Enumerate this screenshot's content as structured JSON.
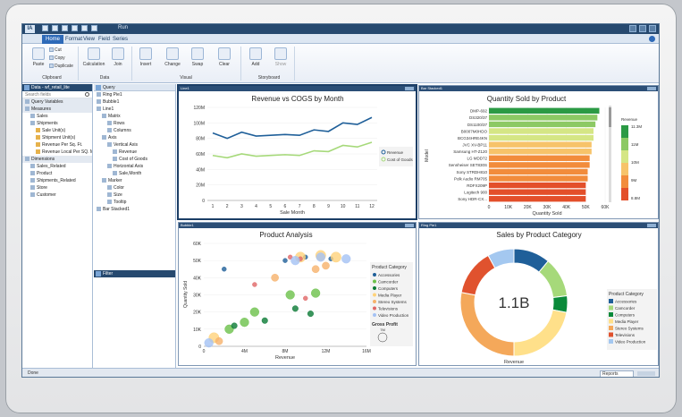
{
  "window": {
    "app_icon": "IA",
    "quick_access_label": "Run",
    "tabs": [
      "Home",
      "Format",
      "View",
      "Field",
      "Series"
    ],
    "active_tab": "Home"
  },
  "ribbon": {
    "paste": "Paste",
    "cut": "Cut",
    "copy": "Copy",
    "duplicate": "Duplicate",
    "calculation": "Calculation",
    "join": "Join",
    "insert": "Insert",
    "change": "Change",
    "swap": "Swap",
    "clear": "Clear",
    "add": "Add",
    "show": "Show",
    "groups": {
      "clipboard": "Clipboard",
      "data": "Data",
      "visual": "Visual",
      "storyboard": "Storyboard"
    }
  },
  "data_panel": {
    "title": "Data - wf_retail_lite",
    "search_placeholder": "Search fields",
    "items": [
      {
        "label": "Query Variables",
        "level": 0,
        "kind": "hdr"
      },
      {
        "label": "Measures",
        "level": 0,
        "kind": "hdr"
      },
      {
        "label": "Sales",
        "level": 1,
        "kind": "folder"
      },
      {
        "label": "Shipments",
        "level": 1,
        "kind": "folder"
      },
      {
        "label": "Sale Unit(s)",
        "level": 2,
        "kind": "m"
      },
      {
        "label": "Shipment Unit(s)",
        "level": 2,
        "kind": "m"
      },
      {
        "label": "Revenue Per Sq. Ft.",
        "level": 2,
        "kind": "m"
      },
      {
        "label": "Revenue Local Per SQ. M.",
        "level": 2,
        "kind": "m"
      },
      {
        "label": "Dimensions",
        "level": 0,
        "kind": "hdr"
      },
      {
        "label": "Sales_Related",
        "level": 1,
        "kind": "folder"
      },
      {
        "label": "Product",
        "level": 1,
        "kind": "folder"
      },
      {
        "label": "Shipments_Related",
        "level": 1,
        "kind": "folder"
      },
      {
        "label": "Store",
        "level": 1,
        "kind": "folder"
      },
      {
        "label": "Customer",
        "level": 1,
        "kind": "folder"
      }
    ]
  },
  "query_panel": {
    "title": "Query",
    "items": [
      {
        "label": "Ring Pie1",
        "level": 0
      },
      {
        "label": "Bubble1",
        "level": 0
      },
      {
        "label": "Line1",
        "level": 0
      },
      {
        "label": "Matrix",
        "level": 1
      },
      {
        "label": "Rows",
        "level": 2
      },
      {
        "label": "Columns",
        "level": 2
      },
      {
        "label": "Axis",
        "level": 1
      },
      {
        "label": "Vertical Axis",
        "level": 2
      },
      {
        "label": "Revenue",
        "level": 3
      },
      {
        "label": "Cost of Goods",
        "level": 3
      },
      {
        "label": "Horizontal Axis",
        "level": 2
      },
      {
        "label": "Sale,Month",
        "level": 3
      },
      {
        "label": "Marker",
        "level": 1
      },
      {
        "label": "Color",
        "level": 2
      },
      {
        "label": "Size",
        "level": 2
      },
      {
        "label": "Tooltip",
        "level": 2
      },
      {
        "label": "Bar Stacked1",
        "level": 0
      }
    ],
    "filter_label": "Filter"
  },
  "status": {
    "text": "Done",
    "dropdown": "Reports"
  },
  "panels": {
    "line": {
      "tab": "Line1"
    },
    "bar": {
      "tab": "Bar Stacked1"
    },
    "bubble": {
      "tab": "Bubble1"
    },
    "ring": {
      "tab": "Ring Pie1"
    }
  },
  "chart_data": [
    {
      "type": "line",
      "title": "Revenue vs COGS by Month",
      "xlabel": "Sale Month",
      "ylabel": "",
      "x": [
        1,
        2,
        3,
        4,
        5,
        6,
        7,
        8,
        9,
        10,
        11,
        12
      ],
      "ylim": [
        0,
        120000000
      ],
      "yticks": [
        "0",
        "20M",
        "40M",
        "60M",
        "80M",
        "100M",
        "120M"
      ],
      "series": [
        {
          "name": "Revenue",
          "color": "#1f5f99",
          "values": [
            87000000,
            80000000,
            88000000,
            83000000,
            84000000,
            85000000,
            84000000,
            91000000,
            89000000,
            100000000,
            98000000,
            107000000
          ]
        },
        {
          "name": "Cost of Goods",
          "color": "#a6d97a",
          "values": [
            58000000,
            55000000,
            60000000,
            57000000,
            58000000,
            59000000,
            58000000,
            64000000,
            63000000,
            71000000,
            69000000,
            75000000
          ]
        }
      ]
    },
    {
      "type": "bar",
      "title": "Quantity Sold by Product",
      "xlabel": "Quantity Sold",
      "ylabel": "Model",
      "xticks": [
        "0",
        "10K",
        "20K",
        "30K",
        "40K",
        "50K",
        "60K"
      ],
      "xlim": [
        0,
        60000
      ],
      "categories": [
        "DMP-692",
        "DS320/37",
        "DS1100/37",
        "B0007M0HDO",
        "BCG34HRE4KN",
        "JVC XV-BP11",
        "Samsung HT-Z120",
        "LG MDD72",
        "Sennheiser SET830S",
        "Sony STRDH810",
        "Polk Audio RM705",
        "RDFX209P",
        "Logitech 900",
        "Sony HDR-CX..."
      ],
      "values": [
        57000,
        56000,
        55000,
        54000,
        54000,
        53000,
        53000,
        52000,
        52000,
        51000,
        51000,
        50000,
        50000,
        50000
      ],
      "legend": {
        "title": "Revenue",
        "max_label": "11.3M",
        "mid_label": "10M",
        "min_label": "8.8M",
        "ticks": [
          "11.3M",
          "11M",
          "10M",
          "9M",
          "8.8M"
        ]
      }
    },
    {
      "type": "scatter",
      "title": "Product Analysis",
      "xlabel": "Revenue",
      "ylabel": "Quantity Sold",
      "xticks": [
        "0",
        "4M",
        "8M",
        "12M",
        "16M"
      ],
      "yticks": [
        "0",
        "10K",
        "20K",
        "30K",
        "40K",
        "50K",
        "60K"
      ],
      "xlim": [
        0,
        16000000
      ],
      "ylim": [
        0,
        60000
      ],
      "legend": {
        "title": "Product Category",
        "size_title": "Gross Profit",
        "size_label": "7M"
      },
      "series": [
        {
          "name": "Accessories",
          "color": "#1f5f99",
          "points": [
            [
              8000000,
              50000
            ],
            [
              10000000,
              52000
            ],
            [
              2000000,
              45000
            ],
            [
              12500000,
              51000
            ]
          ]
        },
        {
          "name": "Camcorder",
          "color": "#6cc04a",
          "points": [
            [
              4000000,
              14000
            ],
            [
              8500000,
              30000
            ],
            [
              11000000,
              31000
            ],
            [
              5000000,
              20000
            ],
            [
              2500000,
              10000
            ]
          ]
        },
        {
          "name": "Computers",
          "color": "#0a7a35",
          "points": [
            [
              6000000,
              15000
            ],
            [
              10500000,
              19000
            ],
            [
              3000000,
              12000
            ],
            [
              9000000,
              22000
            ]
          ]
        },
        {
          "name": "Media Player",
          "color": "#ffd27a",
          "points": [
            [
              9500000,
              52000
            ],
            [
              11500000,
              53000
            ],
            [
              1000000,
              5000
            ],
            [
              13000000,
              52000
            ]
          ]
        },
        {
          "name": "Stereo Systems",
          "color": "#f6b26b",
          "points": [
            [
              12000000,
              47000
            ],
            [
              7000000,
              40000
            ],
            [
              1500000,
              3000
            ],
            [
              11000000,
              45000
            ]
          ]
        },
        {
          "name": "Televisions",
          "color": "#e06666",
          "points": [
            [
              8500000,
              52000
            ],
            [
              9500000,
              51000
            ],
            [
              5000000,
              36000
            ],
            [
              10000000,
              28000
            ]
          ]
        },
        {
          "name": "Video Production",
          "color": "#a4c2f4",
          "points": [
            [
              11500000,
              52000
            ],
            [
              9000000,
              50000
            ],
            [
              14000000,
              51000
            ],
            [
              500000,
              2000
            ]
          ]
        }
      ]
    },
    {
      "type": "pie",
      "title": "Sales by Product Category",
      "center_label": "1.1B",
      "caption": "Revenue",
      "legend_title": "Product Category",
      "categories": [
        "Accessories",
        "Camcorder",
        "Computers",
        "Media Player",
        "Stereo Systems",
        "Televisions",
        "Video Production"
      ],
      "values": [
        11,
        12,
        5,
        22,
        28,
        14,
        8
      ],
      "colors": [
        "#1f5f99",
        "#a6d97a",
        "#0a8a3a",
        "#ffe08a",
        "#f4a85a",
        "#e0522e",
        "#a4c8f0"
      ]
    }
  ]
}
